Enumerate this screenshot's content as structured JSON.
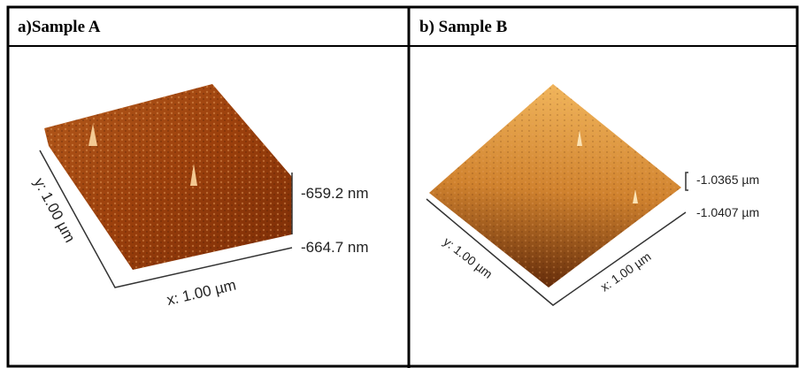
{
  "panels": [
    {
      "title": "a)Sample A",
      "y_axis": "y: 1.00 µm",
      "x_axis": "x: 1.00 µm",
      "z_top": "-659.2 nm",
      "z_bottom": "-664.7 nm"
    },
    {
      "title": "b) Sample B",
      "y_axis": "y: 1.00 µm",
      "x_axis": "x: 1.00 µm",
      "z_top": "-1.0365 µm",
      "z_bottom": "-1.0407 µm"
    }
  ]
}
